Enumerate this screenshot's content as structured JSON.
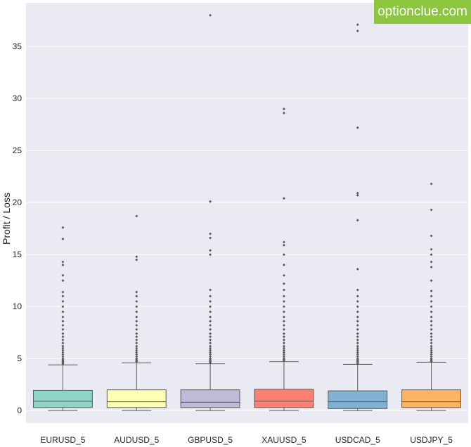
{
  "watermark": "optionclue.com",
  "chart_data": {
    "type": "box",
    "ylabel": "Profit / Loss",
    "xlabel": "",
    "ylim": [
      -1.2,
      39.2
    ],
    "yticks": [
      0,
      5,
      10,
      15,
      20,
      25,
      30,
      35
    ],
    "grid": true,
    "categories": [
      "EURUSD_5",
      "AUDUSD_5",
      "GBPUSD_5",
      "XAUUSD_5",
      "USDCAD_5",
      "USDJPY_5"
    ],
    "colors": [
      "#8dd3c7",
      "#ffffb3",
      "#bebada",
      "#fb8072",
      "#80b1d3",
      "#fdb462"
    ],
    "boxes": [
      {
        "min": 0.0,
        "q1": 0.3,
        "median": 0.9,
        "q3": 1.95,
        "max": 4.4,
        "outliers": [
          4.5,
          4.6,
          4.7,
          4.8,
          4.9,
          5.0,
          5.2,
          5.4,
          5.6,
          5.8,
          6.0,
          6.2,
          6.5,
          6.8,
          7.1,
          7.4,
          7.8,
          8.2,
          8.6,
          9.0,
          9.5,
          10.0,
          10.5,
          11.0,
          11.4,
          12.5,
          13.0,
          14.0,
          14.3,
          16.5,
          17.6
        ]
      },
      {
        "min": 0.0,
        "q1": 0.3,
        "median": 0.85,
        "q3": 2.0,
        "max": 4.6,
        "outliers": [
          4.7,
          4.8,
          4.9,
          5.0,
          5.2,
          5.4,
          5.6,
          5.8,
          6.0,
          6.2,
          6.5,
          6.8,
          7.1,
          7.4,
          7.8,
          8.2,
          8.6,
          9.0,
          9.5,
          10.0,
          10.5,
          11.0,
          11.4,
          14.5,
          14.8,
          18.7
        ]
      },
      {
        "min": 0.0,
        "q1": 0.3,
        "median": 0.8,
        "q3": 2.0,
        "max": 4.5,
        "outliers": [
          4.6,
          4.7,
          4.8,
          4.9,
          5.0,
          5.2,
          5.4,
          5.6,
          5.8,
          6.0,
          6.2,
          6.5,
          6.8,
          7.1,
          7.4,
          7.8,
          8.2,
          8.6,
          9.0,
          9.5,
          10.0,
          10.5,
          11.0,
          11.6,
          15.0,
          15.4,
          16.6,
          17.0,
          20.1,
          38.0
        ]
      },
      {
        "min": 0.0,
        "q1": 0.3,
        "median": 0.9,
        "q3": 2.05,
        "max": 4.7,
        "outliers": [
          4.8,
          4.9,
          5.0,
          5.2,
          5.4,
          5.6,
          5.8,
          6.0,
          6.2,
          6.5,
          6.8,
          7.1,
          7.4,
          7.8,
          8.2,
          8.6,
          9.0,
          9.5,
          10.0,
          10.5,
          11.0,
          11.6,
          12.2,
          13.0,
          14.0,
          15.0,
          15.9,
          16.2,
          20.4,
          28.6,
          29.0
        ]
      },
      {
        "min": 0.0,
        "q1": 0.2,
        "median": 0.85,
        "q3": 1.9,
        "max": 4.45,
        "outliers": [
          4.5,
          4.6,
          4.7,
          4.8,
          4.9,
          5.0,
          5.2,
          5.4,
          5.6,
          5.8,
          6.0,
          6.2,
          6.5,
          6.8,
          7.1,
          7.4,
          7.8,
          8.2,
          8.6,
          9.0,
          9.5,
          10.0,
          10.5,
          11.0,
          11.6,
          13.6,
          18.3,
          20.7,
          20.9,
          27.2,
          36.5,
          37.1
        ]
      },
      {
        "min": 0.0,
        "q1": 0.3,
        "median": 0.85,
        "q3": 2.0,
        "max": 4.65,
        "outliers": [
          4.7,
          4.8,
          4.9,
          5.0,
          5.2,
          5.4,
          5.6,
          5.8,
          6.0,
          6.2,
          6.5,
          6.8,
          7.1,
          7.4,
          7.8,
          8.2,
          8.6,
          9.0,
          9.5,
          10.0,
          10.5,
          11.0,
          11.5,
          12.5,
          13.8,
          14.3,
          15.0,
          15.5,
          16.8,
          19.3,
          21.8
        ]
      }
    ]
  }
}
